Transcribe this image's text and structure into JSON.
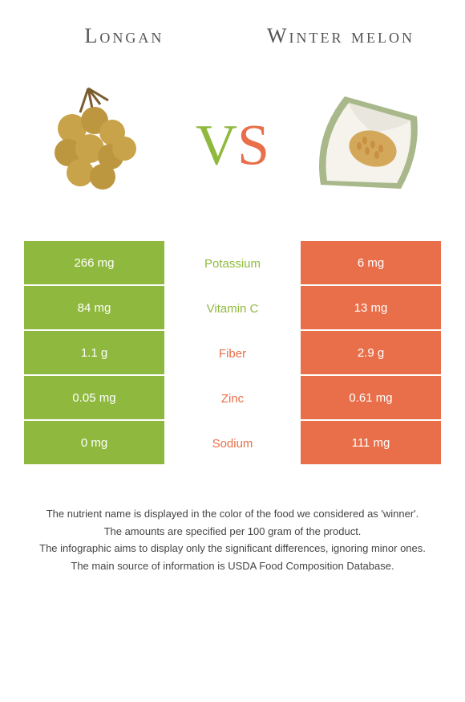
{
  "header": {
    "left_title": "Longan",
    "right_title": "Winter melon"
  },
  "vs": {
    "v": "V",
    "s": "S"
  },
  "colors": {
    "green": "#8fb93e",
    "orange": "#e86f4a",
    "text": "#555555",
    "footer_text": "#444444",
    "background": "#ffffff"
  },
  "comparison": {
    "rows": [
      {
        "nutrient": "Potassium",
        "left": "266 mg",
        "right": "6 mg",
        "winner": "left"
      },
      {
        "nutrient": "Vitamin C",
        "left": "84 mg",
        "right": "13 mg",
        "winner": "left"
      },
      {
        "nutrient": "Fiber",
        "left": "1.1 g",
        "right": "2.9 g",
        "winner": "right"
      },
      {
        "nutrient": "Zinc",
        "left": "0.05 mg",
        "right": "0.61 mg",
        "winner": "right"
      },
      {
        "nutrient": "Sodium",
        "left": "0 mg",
        "right": "111 mg",
        "winner": "right"
      }
    ]
  },
  "footer": {
    "line1": "The nutrient name is displayed in the color of the food we considered as 'winner'.",
    "line2": "The amounts are specified per 100 gram of the product.",
    "line3": "The infographic aims to display only the significant differences, ignoring minor ones.",
    "line4": "The main source of information is USDA Food Composition Database."
  }
}
